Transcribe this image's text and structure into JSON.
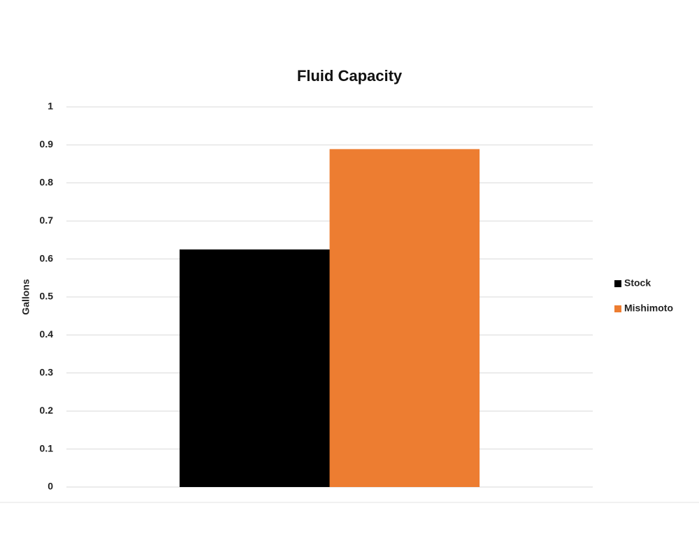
{
  "chart_data": {
    "type": "bar",
    "title": "Fluid Capacity",
    "y_label": "Gallons",
    "categories": [
      null
    ],
    "series": [
      {
        "name": "Stock",
        "color": "#000000",
        "values": [
          0.625
        ]
      },
      {
        "name": "Mishimoto",
        "color": "#ed7d31",
        "values": [
          0.889
        ]
      }
    ],
    "ylim": [
      0,
      1
    ],
    "yticks": [
      0,
      0.1,
      0.2,
      0.3,
      0.4,
      0.5,
      0.6,
      0.7,
      0.8,
      0.9,
      1
    ],
    "grid": true,
    "legend": "right"
  }
}
